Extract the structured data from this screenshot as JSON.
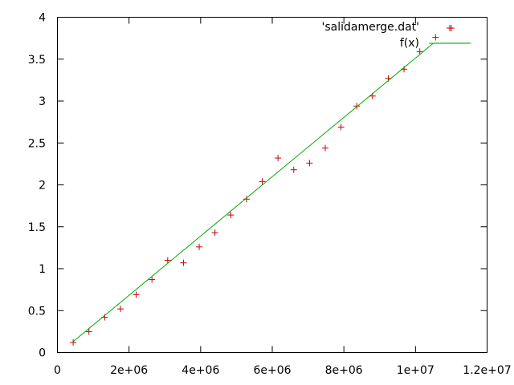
{
  "chart_data": {
    "type": "scatter",
    "title": "",
    "xlabel": "",
    "ylabel": "",
    "xlim": [
      0,
      12000000
    ],
    "ylim": [
      0,
      4
    ],
    "grid": false,
    "legend_position": "top-right",
    "x_ticks": [
      {
        "value": 0,
        "label": "0"
      },
      {
        "value": 2000000,
        "label": "2e+06"
      },
      {
        "value": 4000000,
        "label": "4e+06"
      },
      {
        "value": 6000000,
        "label": "6e+06"
      },
      {
        "value": 8000000,
        "label": "8e+06"
      },
      {
        "value": 10000000,
        "label": "1e+07"
      },
      {
        "value": 12000000,
        "label": "1.2e+07"
      }
    ],
    "y_ticks": [
      {
        "value": 0,
        "label": "0"
      },
      {
        "value": 0.5,
        "label": "0.5"
      },
      {
        "value": 1,
        "label": "1"
      },
      {
        "value": 1.5,
        "label": "1.5"
      },
      {
        "value": 2,
        "label": "2"
      },
      {
        "value": 2.5,
        "label": "2.5"
      },
      {
        "value": 3,
        "label": "3"
      },
      {
        "value": 3.5,
        "label": "3.5"
      },
      {
        "value": 4,
        "label": "4"
      }
    ],
    "series": [
      {
        "name": "'salidamerge.dat'",
        "type": "scatter",
        "color": "#cc0000",
        "marker": "plus",
        "points": [
          {
            "x": 440000,
            "y": 0.12
          },
          {
            "x": 880000,
            "y": 0.25
          },
          {
            "x": 1320000,
            "y": 0.42
          },
          {
            "x": 1760000,
            "y": 0.52
          },
          {
            "x": 2200000,
            "y": 0.69
          },
          {
            "x": 2640000,
            "y": 0.87
          },
          {
            "x": 3080000,
            "y": 1.1
          },
          {
            "x": 3520000,
            "y": 1.07
          },
          {
            "x": 3960000,
            "y": 1.26
          },
          {
            "x": 4400000,
            "y": 1.43
          },
          {
            "x": 4840000,
            "y": 1.64
          },
          {
            "x": 5280000,
            "y": 1.83
          },
          {
            "x": 5720000,
            "y": 2.04
          },
          {
            "x": 6160000,
            "y": 2.32
          },
          {
            "x": 6600000,
            "y": 2.18
          },
          {
            "x": 7040000,
            "y": 2.26
          },
          {
            "x": 7480000,
            "y": 2.44
          },
          {
            "x": 7920000,
            "y": 2.69
          },
          {
            "x": 8360000,
            "y": 2.94
          },
          {
            "x": 8800000,
            "y": 3.06
          },
          {
            "x": 9240000,
            "y": 3.27
          },
          {
            "x": 9680000,
            "y": 3.38
          },
          {
            "x": 10120000,
            "y": 3.59
          },
          {
            "x": 10560000,
            "y": 3.76
          },
          {
            "x": 11000000,
            "y": 3.87
          }
        ]
      },
      {
        "name": "f(x)",
        "type": "line",
        "color": "#00aa00",
        "points": [
          {
            "x": 440000,
            "y": 0.13
          },
          {
            "x": 10500000,
            "y": 3.69
          },
          {
            "x": 11550000,
            "y": 3.69
          }
        ]
      }
    ]
  }
}
